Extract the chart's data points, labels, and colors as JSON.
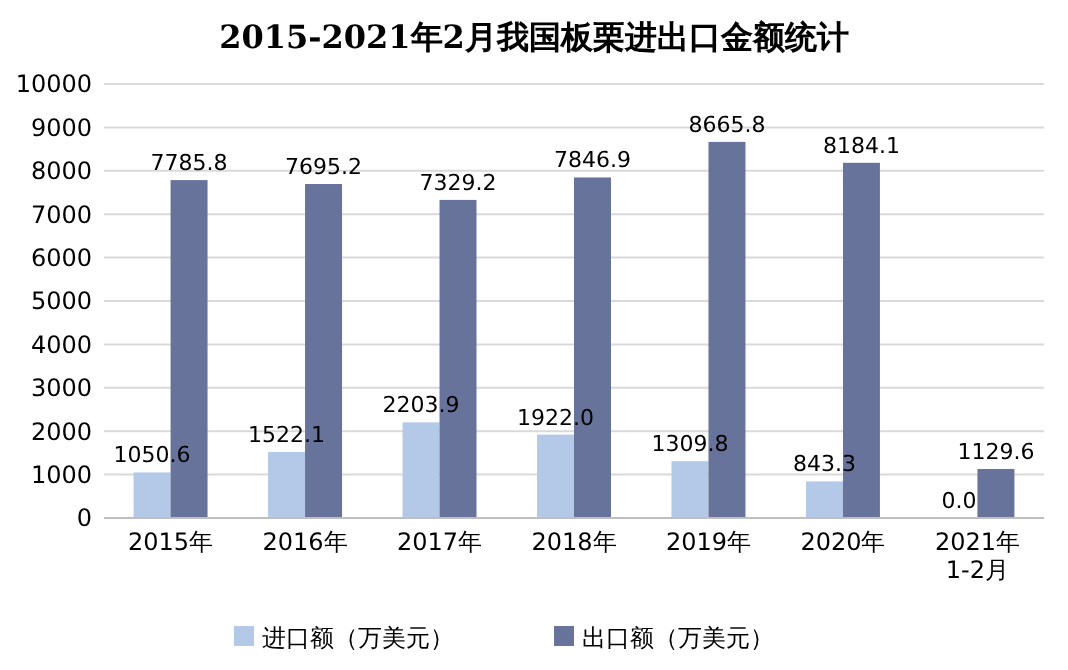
{
  "chart_data": {
    "type": "bar",
    "title": "2015-2021年2月我国板栗进出口金额统计",
    "categories": [
      "2015年",
      "2016年",
      "2017年",
      "2018年",
      "2019年",
      "2020年",
      "2021年\n1-2月"
    ],
    "series": [
      {
        "name": "进口额（万美元）",
        "color": "#b4c8e8",
        "values": [
          1050.6,
          1522.1,
          2203.9,
          1922.0,
          1309.8,
          843.3,
          0.0
        ],
        "value_labels": [
          "1050.6",
          "1522.1",
          "2203.9",
          "1922.0",
          "1309.8",
          "843.3",
          "0.0"
        ]
      },
      {
        "name": "出口额（万美元）",
        "color": "#68739c",
        "values": [
          7785.8,
          7695.2,
          7329.2,
          7846.9,
          8665.8,
          8184.1,
          1129.6
        ],
        "value_labels": [
          "7785.8",
          "7695.2",
          "7329.2",
          "7846.9",
          "8665.8",
          "8184.1",
          "1129.6"
        ]
      }
    ],
    "ylim": [
      0,
      10000
    ],
    "yticks": [
      0,
      1000,
      2000,
      3000,
      4000,
      5000,
      6000,
      7000,
      8000,
      9000,
      10000
    ],
    "grid": "y",
    "legend": "bottom"
  }
}
